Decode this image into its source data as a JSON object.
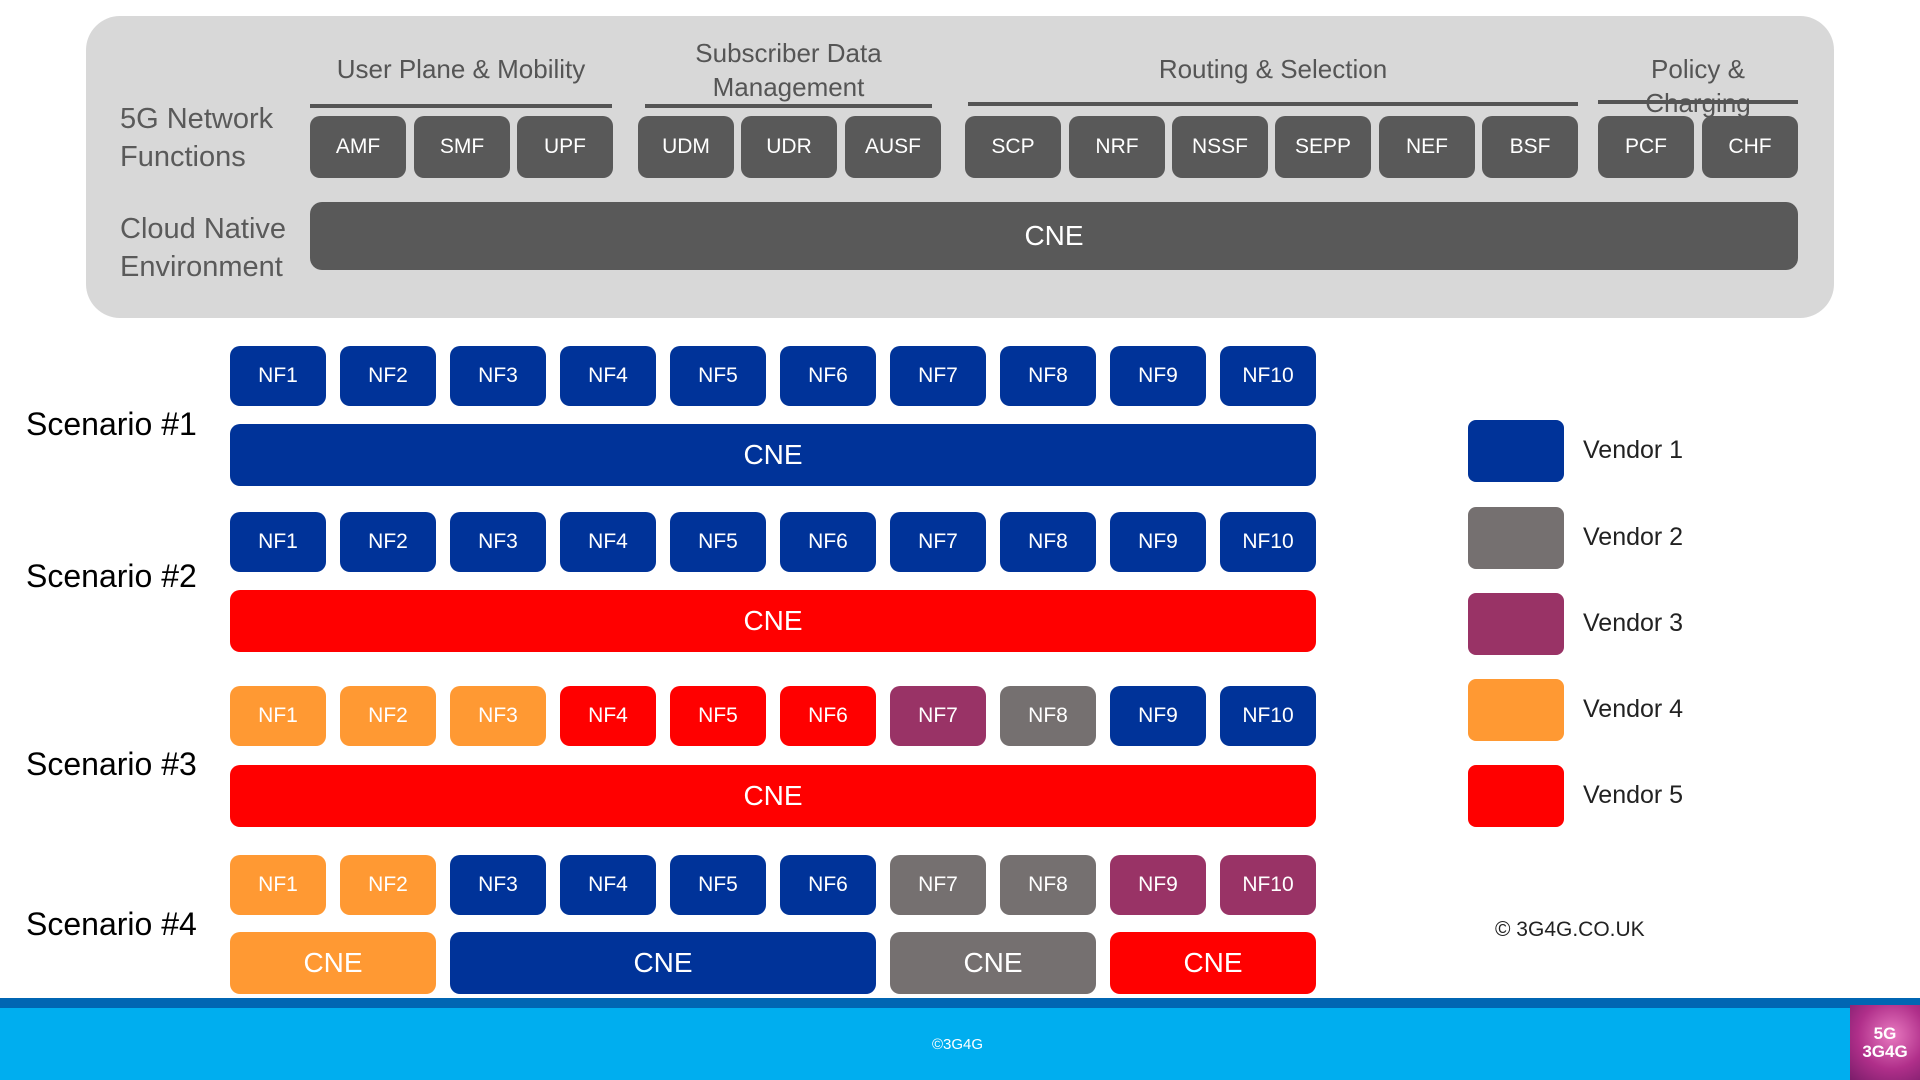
{
  "top": {
    "row_labels": {
      "network_functions": [
        "5G Network",
        "Functions"
      ],
      "cloud_native": [
        "Cloud Native",
        "Environment"
      ]
    },
    "groups": [
      {
        "title": [
          "User Plane & Mobility"
        ],
        "items": [
          "AMF",
          "SMF",
          "UPF"
        ]
      },
      {
        "title": [
          "Subscriber Data",
          "Management"
        ],
        "items": [
          "UDM",
          "UDR",
          "AUSF"
        ]
      },
      {
        "title": [
          "Routing & Selection"
        ],
        "items": [
          "SCP",
          "NRF",
          "NSSF",
          "SEPP",
          "NEF",
          "BSF"
        ]
      },
      {
        "title": [
          "Policy & Charging"
        ],
        "items": [
          "PCF",
          "CHF"
        ]
      }
    ],
    "cne_label": "CNE"
  },
  "scenarios": [
    {
      "label": "Scenario #1",
      "nfs": [
        {
          "name": "NF1",
          "vendor": 1
        },
        {
          "name": "NF2",
          "vendor": 1
        },
        {
          "name": "NF3",
          "vendor": 1
        },
        {
          "name": "NF4",
          "vendor": 1
        },
        {
          "name": "NF5",
          "vendor": 1
        },
        {
          "name": "NF6",
          "vendor": 1
        },
        {
          "name": "NF7",
          "vendor": 1
        },
        {
          "name": "NF8",
          "vendor": 1
        },
        {
          "name": "NF9",
          "vendor": 1
        },
        {
          "name": "NF10",
          "vendor": 1
        }
      ],
      "cnes": [
        {
          "label": "CNE",
          "vendor": 1,
          "span": [
            1,
            10
          ]
        }
      ]
    },
    {
      "label": "Scenario #2",
      "nfs": [
        {
          "name": "NF1",
          "vendor": 1
        },
        {
          "name": "NF2",
          "vendor": 1
        },
        {
          "name": "NF3",
          "vendor": 1
        },
        {
          "name": "NF4",
          "vendor": 1
        },
        {
          "name": "NF5",
          "vendor": 1
        },
        {
          "name": "NF6",
          "vendor": 1
        },
        {
          "name": "NF7",
          "vendor": 1
        },
        {
          "name": "NF8",
          "vendor": 1
        },
        {
          "name": "NF9",
          "vendor": 1
        },
        {
          "name": "NF10",
          "vendor": 1
        }
      ],
      "cnes": [
        {
          "label": "CNE",
          "vendor": 5,
          "span": [
            1,
            10
          ]
        }
      ]
    },
    {
      "label": "Scenario #3",
      "nfs": [
        {
          "name": "NF1",
          "vendor": 4
        },
        {
          "name": "NF2",
          "vendor": 4
        },
        {
          "name": "NF3",
          "vendor": 4
        },
        {
          "name": "NF4",
          "vendor": 5
        },
        {
          "name": "NF5",
          "vendor": 5
        },
        {
          "name": "NF6",
          "vendor": 5
        },
        {
          "name": "NF7",
          "vendor": 3
        },
        {
          "name": "NF8",
          "vendor": 2
        },
        {
          "name": "NF9",
          "vendor": 1
        },
        {
          "name": "NF10",
          "vendor": 1
        }
      ],
      "cnes": [
        {
          "label": "CNE",
          "vendor": 5,
          "span": [
            1,
            10
          ]
        }
      ]
    },
    {
      "label": "Scenario #4",
      "nfs": [
        {
          "name": "NF1",
          "vendor": 4
        },
        {
          "name": "NF2",
          "vendor": 4
        },
        {
          "name": "NF3",
          "vendor": 1
        },
        {
          "name": "NF4",
          "vendor": 1
        },
        {
          "name": "NF5",
          "vendor": 1
        },
        {
          "name": "NF6",
          "vendor": 1
        },
        {
          "name": "NF7",
          "vendor": 2
        },
        {
          "name": "NF8",
          "vendor": 2
        },
        {
          "name": "NF9",
          "vendor": 3
        },
        {
          "name": "NF10",
          "vendor": 3
        }
      ],
      "cnes": [
        {
          "label": "CNE",
          "vendor": 4,
          "span": [
            1,
            2
          ]
        },
        {
          "label": "CNE",
          "vendor": 1,
          "span": [
            3,
            6
          ]
        },
        {
          "label": "CNE",
          "vendor": 2,
          "span": [
            7,
            8
          ]
        },
        {
          "label": "CNE",
          "vendor": 5,
          "span": [
            9,
            10
          ]
        }
      ]
    }
  ],
  "legend": [
    {
      "label": "Vendor 1",
      "color": "#003399"
    },
    {
      "label": "Vendor 2",
      "color": "#757070"
    },
    {
      "label": "Vendor 3",
      "color": "#993366"
    },
    {
      "label": "Vendor 4",
      "color": "#ff9933"
    },
    {
      "label": "Vendor 5",
      "color": "#ff0000"
    }
  ],
  "colors": {
    "top_box": "#595959",
    "panel": "#d8d8d8",
    "footer": "#00aeef",
    "footer_border": "#0066b3"
  },
  "copyright": "© 3G4G.CO.UK",
  "footer": {
    "text": "©3G4G",
    "logo_lines": [
      "5G",
      "3G4G"
    ]
  }
}
